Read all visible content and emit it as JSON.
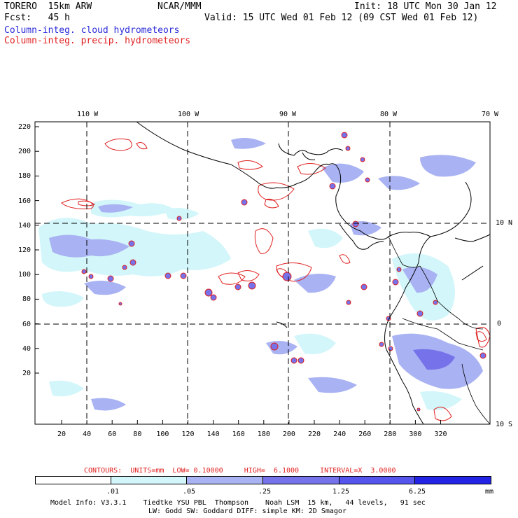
{
  "header": {
    "model": "TORERO  15km ARW",
    "center": "NCAR/MMM",
    "init": "Init: 18 UTC Mon 30 Jan 12",
    "fcst": "Fcst:   45 h",
    "valid": "Valid: 15 UTC Wed 01 Feb 12 (09 CST Wed 01 Feb 12)"
  },
  "legend": {
    "cloud_label": "Column-integ. cloud hydrometeors",
    "precip_label": "Column-integ. precip. hydrometeors",
    "cloud_color": "#2a2ad8",
    "precip_color": "#e02020"
  },
  "lon_labels": [
    "110 W",
    "100 W",
    "90 W",
    "80 W",
    "70 W"
  ],
  "lat_labels": [
    "10 N",
    "0",
    "10 S"
  ],
  "y_ticks": [
    "220",
    "200",
    "180",
    "160",
    "140",
    "120",
    "100",
    "80",
    "60",
    "40",
    "20"
  ],
  "x_ticks": [
    "20",
    "40",
    "60",
    "80",
    "100",
    "120",
    "140",
    "160",
    "180",
    "200",
    "220",
    "240",
    "260",
    "280",
    "300",
    "320"
  ],
  "contour_info": "CONTOURS:  UNITS=mm  LOW= 0.10000     HIGH=  6.1000     INTERVAL=X  3.0000",
  "colorbar": {
    "labels": [
      ".01",
      ".05",
      ".25",
      "1.25",
      "6.25",
      "mm"
    ],
    "colors": [
      "#ffffff",
      "#d2f6fa",
      "#a9b2f2",
      "#7672ea",
      "#5555ee",
      "#2323e6"
    ]
  },
  "footer": {
    "line1": "Model Info: V3.3.1    Tiedtke YSU PBL  Thompson    Noah LSM  15 km,   44 levels,   91 sec",
    "line2": "LW: Godd SW: Goddard DIFF: simple KM: 2D Smagor"
  }
}
